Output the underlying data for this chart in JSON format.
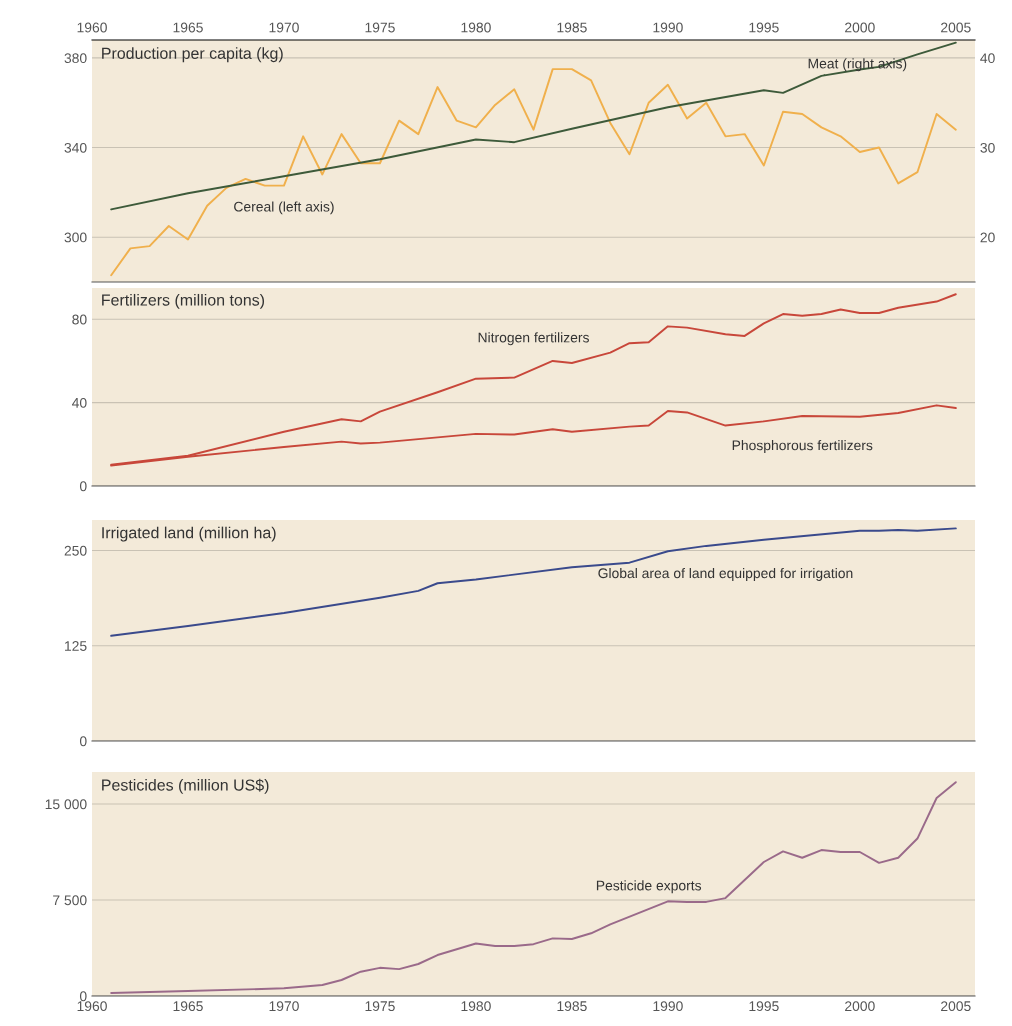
{
  "chart_data": [
    {
      "type": "line",
      "title": "Production per capita (kg)",
      "xlim": [
        1960,
        2006
      ],
      "xticks": [
        1960,
        1965,
        1970,
        1975,
        1980,
        1985,
        1990,
        1995,
        2000,
        2005
      ],
      "ylim": [
        280,
        388
      ],
      "yticks": [
        300,
        340,
        380
      ],
      "y2lim": [
        15,
        42
      ],
      "y2ticks": [
        20,
        30,
        40
      ],
      "grid": "y",
      "legend": false,
      "series": [
        {
          "name": "Cereal (left axis)",
          "color": "#f0b04c",
          "x": [
            1961,
            1962,
            1963,
            1964,
            1965,
            1966,
            1967,
            1968,
            1969,
            1970,
            1971,
            1972,
            1973,
            1974,
            1975,
            1976,
            1977,
            1978,
            1979,
            1980,
            1981,
            1982,
            1983,
            1984,
            1985,
            1986,
            1987,
            1988,
            1989,
            1990,
            1991,
            1992,
            1993,
            1994,
            1995,
            1996,
            1997,
            1998,
            1999,
            2000,
            2001,
            2002,
            2003,
            2004,
            2005
          ],
          "values": [
            283,
            295,
            296,
            305,
            299,
            314,
            322,
            326,
            323,
            323,
            345,
            328,
            346,
            333,
            333,
            352,
            346,
            367,
            352,
            349,
            359,
            366,
            348,
            375,
            375,
            370,
            351,
            337,
            360,
            368,
            353,
            360,
            345,
            346,
            332,
            356,
            355,
            349,
            345,
            338,
            340,
            324,
            329,
            355,
            348
          ]
        },
        {
          "name": "Meat (right axis)",
          "color": "#3d5a3a",
          "axis": "y2",
          "x": [
            1961,
            1965,
            1970,
            1975,
            1980,
            1982,
            1985,
            1990,
            1995,
            1996,
            1998,
            2000,
            2001,
            2003,
            2005
          ],
          "values": [
            23.1,
            24.9,
            26.8,
            28.7,
            30.9,
            30.6,
            32.1,
            34.5,
            36.4,
            36.1,
            38.0,
            38.7,
            39.0,
            40.4,
            41.7
          ]
        }
      ]
    },
    {
      "type": "line",
      "title": "Fertilizers (million tons)",
      "xlim": [
        1960,
        2006
      ],
      "ylim": [
        0,
        95
      ],
      "yticks": [
        0,
        40,
        80
      ],
      "tick_labels": "y",
      "grid": "y",
      "legend": false,
      "series": [
        {
          "name": "Nitrogen fertilizers",
          "color": "#c8473a",
          "x": [
            1961,
            1965,
            1970,
            1973,
            1974,
            1975,
            1978,
            1980,
            1982,
            1984,
            1985,
            1987,
            1988,
            1989,
            1990,
            1991,
            1993,
            1994,
            1995,
            1996,
            1997,
            1998,
            1999,
            2000,
            2001,
            2002,
            2004,
            2005
          ],
          "values": [
            10.2,
            14.5,
            26,
            32,
            31,
            35.7,
            45,
            51.5,
            52,
            60,
            59,
            64,
            68.5,
            69,
            76.6,
            76,
            72.8,
            72,
            78,
            82.5,
            81.7,
            82.5,
            84.7,
            83,
            83,
            85.5,
            88.5,
            92
          ]
        },
        {
          "name": "Phosphorous fertilizers",
          "color": "#c8473a",
          "x": [
            1961,
            1965,
            1970,
            1973,
            1974,
            1975,
            1980,
            1982,
            1984,
            1985,
            1988,
            1989,
            1990,
            1991,
            1993,
            1995,
            1997,
            2000,
            2002,
            2004,
            2005
          ],
          "values": [
            9.8,
            14,
            18.7,
            21.3,
            20.4,
            20.8,
            25,
            24.7,
            27.2,
            26,
            28.5,
            29,
            36,
            35.3,
            29,
            31,
            33.6,
            33.2,
            35,
            38.7,
            37.4
          ]
        }
      ]
    },
    {
      "type": "line",
      "title": "Irrigated land (million ha)",
      "xlim": [
        1960,
        2006
      ],
      "ylim": [
        0,
        290
      ],
      "yticks": [
        0,
        125,
        250
      ],
      "tick_labels": "y",
      "grid": "y",
      "legend": false,
      "series": [
        {
          "name": "Global area of land equipped for irrigation",
          "color": "#3a4a8c",
          "x": [
            1961,
            1965,
            1970,
            1975,
            1977,
            1978,
            1980,
            1985,
            1988,
            1990,
            1992,
            1995,
            2000,
            2001,
            2002,
            2003,
            2005
          ],
          "values": [
            138,
            151,
            168,
            188,
            197,
            207,
            212,
            228,
            234,
            249,
            256,
            264,
            276,
            276,
            277,
            276,
            279
          ]
        }
      ]
    },
    {
      "type": "line",
      "title": "Pesticides (million US$)",
      "xlim": [
        1960,
        2006
      ],
      "xticks": [
        1960,
        1965,
        1970,
        1975,
        1980,
        1985,
        1990,
        1995,
        2000,
        2005
      ],
      "ylim": [
        0,
        17500
      ],
      "yticks": [
        0,
        {
          "value": 7500,
          "label": "7 500"
        },
        {
          "value": 15000,
          "label": "15 000"
        }
      ],
      "grid": "y",
      "legend": false,
      "series": [
        {
          "name": "Pesticide exports",
          "color": "#9a6a8a",
          "x": [
            1961,
            1965,
            1970,
            1972,
            1973,
            1974,
            1975,
            1976,
            1977,
            1978,
            1980,
            1981,
            1982,
            1983,
            1984,
            1985,
            1986,
            1987,
            1990,
            1991,
            1992,
            1993,
            1994,
            1995,
            1996,
            1997,
            1998,
            1999,
            2000,
            2001,
            2002,
            2003,
            2004,
            2005
          ],
          "values": [
            230,
            390,
            600,
            860,
            1250,
            1900,
            2200,
            2100,
            2500,
            3200,
            4100,
            3900,
            3900,
            4050,
            4500,
            4450,
            4900,
            5600,
            7400,
            7350,
            7350,
            7650,
            9060,
            10470,
            11300,
            10800,
            11400,
            11250,
            11250,
            10400,
            10800,
            12300,
            15470,
            16700
          ]
        }
      ]
    }
  ]
}
